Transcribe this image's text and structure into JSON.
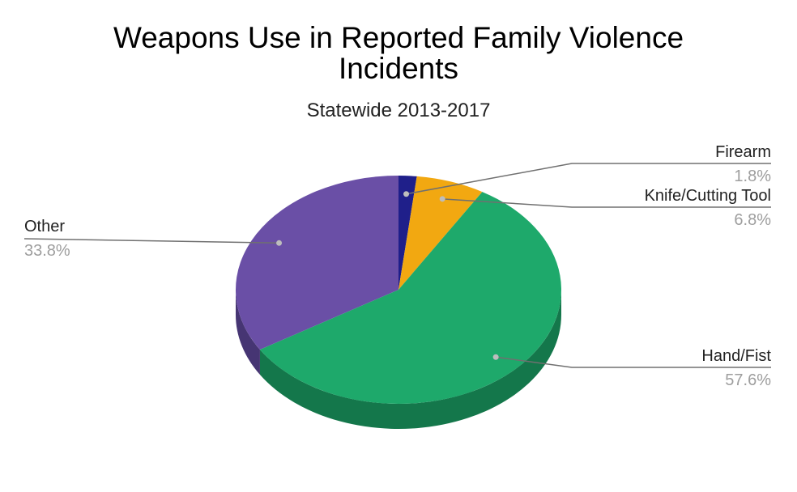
{
  "chart_data": {
    "type": "pie",
    "title_line1": "Weapons Use in Reported Family Violence",
    "title_line2": "Incidents",
    "subtitle": "Statewide 2013-2017",
    "slices": [
      {
        "label": "Firearm",
        "value": 1.8,
        "value_text": "1.8%",
        "color": "#1f1f8a",
        "side_color": "#151560"
      },
      {
        "label": "Knife/Cutting Tool",
        "value": 6.8,
        "value_text": "6.8%",
        "color": "#f2a811",
        "side_color": "#a8740b"
      },
      {
        "label": "Hand/Fist",
        "value": 57.6,
        "value_text": "57.6%",
        "color": "#1ea96b",
        "side_color": "#14774b"
      },
      {
        "label": "Other",
        "value": 33.8,
        "value_text": "33.8%",
        "color": "#6a4fa6",
        "side_color": "#463573"
      }
    ],
    "legend": "none",
    "labels_position": "outside-with-leaders",
    "style": "3d"
  }
}
